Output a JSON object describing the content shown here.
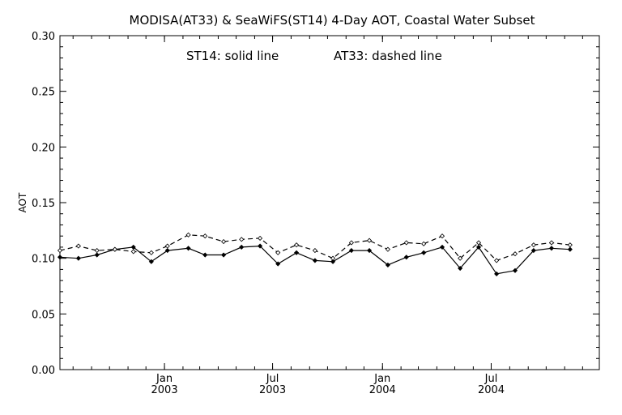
{
  "chart_data": {
    "type": "line",
    "title": "MODISA(AT33) & SeaWiFS(ST14) 4-Day AOT, Coastal Water Subset",
    "annotation": {
      "st14": "ST14: solid line",
      "at33": "AT33: dashed line"
    },
    "ylabel": "AOT",
    "xlabel": "",
    "ylim": [
      0.0,
      0.3
    ],
    "xlim": [
      "2002-07-10",
      "2004-12-29"
    ],
    "y_ticks": [
      "0.00",
      "0.05",
      "0.10",
      "0.15",
      "0.20",
      "0.25",
      "0.30"
    ],
    "x_ticks": [
      {
        "month": "Jan",
        "year": "2003",
        "date": "2003-01-01"
      },
      {
        "month": "Jul",
        "year": "2003",
        "date": "2003-07-01"
      },
      {
        "month": "Jan",
        "year": "2004",
        "date": "2004-01-01"
      },
      {
        "month": "Jul",
        "year": "2004",
        "date": "2004-07-01"
      }
    ],
    "grid": false,
    "series": [
      {
        "key": "ST14",
        "style": "solid",
        "points": [
          [
            "2002-07-10",
            0.101
          ],
          [
            "2002-08-10",
            0.1
          ],
          [
            "2002-09-10",
            0.103
          ],
          [
            "2002-10-10",
            0.108
          ],
          [
            "2002-11-10",
            0.11
          ],
          [
            "2002-12-10",
            0.097
          ],
          [
            "2003-01-06",
            0.107
          ],
          [
            "2003-02-10",
            0.109
          ],
          [
            "2003-03-10",
            0.103
          ],
          [
            "2003-04-10",
            0.103
          ],
          [
            "2003-05-10",
            0.11
          ],
          [
            "2003-06-10",
            0.111
          ],
          [
            "2003-07-10",
            0.095
          ],
          [
            "2003-08-10",
            0.105
          ],
          [
            "2003-09-10",
            0.098
          ],
          [
            "2003-10-10",
            0.097
          ],
          [
            "2003-11-10",
            0.107
          ],
          [
            "2003-12-10",
            0.107
          ],
          [
            "2004-01-10",
            0.094
          ],
          [
            "2004-02-10",
            0.101
          ],
          [
            "2004-03-10",
            0.105
          ],
          [
            "2004-04-10",
            0.11
          ],
          [
            "2004-05-10",
            0.091
          ],
          [
            "2004-06-10",
            0.11
          ],
          [
            "2004-07-10",
            0.086
          ],
          [
            "2004-08-10",
            0.089
          ],
          [
            "2004-09-10",
            0.107
          ],
          [
            "2004-10-10",
            0.109
          ],
          [
            "2004-11-10",
            0.108
          ]
        ]
      },
      {
        "key": "AT33",
        "style": "dashed",
        "points": [
          [
            "2002-07-10",
            0.107
          ],
          [
            "2002-08-10",
            0.111
          ],
          [
            "2002-09-10",
            0.107
          ],
          [
            "2002-10-10",
            0.108
          ],
          [
            "2002-11-10",
            0.106
          ],
          [
            "2002-12-10",
            0.105
          ],
          [
            "2003-01-06",
            0.111
          ],
          [
            "2003-02-10",
            0.121
          ],
          [
            "2003-03-10",
            0.12
          ],
          [
            "2003-04-10",
            0.115
          ],
          [
            "2003-05-10",
            0.117
          ],
          [
            "2003-06-10",
            0.118
          ],
          [
            "2003-07-10",
            0.105
          ],
          [
            "2003-08-10",
            0.112
          ],
          [
            "2003-09-10",
            0.107
          ],
          [
            "2003-10-10",
            0.1
          ],
          [
            "2003-11-10",
            0.114
          ],
          [
            "2003-12-10",
            0.116
          ],
          [
            "2004-01-10",
            0.108
          ],
          [
            "2004-02-10",
            0.114
          ],
          [
            "2004-03-10",
            0.113
          ],
          [
            "2004-04-10",
            0.12
          ],
          [
            "2004-05-10",
            0.1
          ],
          [
            "2004-06-10",
            0.114
          ],
          [
            "2004-07-10",
            0.098
          ],
          [
            "2004-08-10",
            0.104
          ],
          [
            "2004-09-10",
            0.112
          ],
          [
            "2004-10-10",
            0.114
          ],
          [
            "2004-11-10",
            0.112
          ]
        ]
      }
    ]
  }
}
